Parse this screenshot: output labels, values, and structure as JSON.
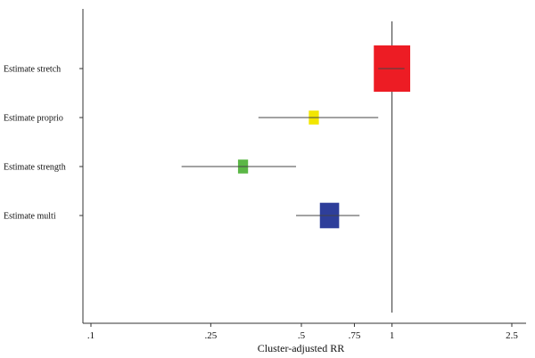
{
  "chart_data": {
    "type": "forest",
    "title": "",
    "xlabel": "Cluster-adjusted RR",
    "ylabel": "",
    "xscale": "log",
    "xlim": [
      0.1,
      2.5
    ],
    "xticks": [
      {
        "value": 0.1,
        "label": ".1"
      },
      {
        "value": 0.25,
        "label": ".25"
      },
      {
        "value": 0.5,
        "label": ".5"
      },
      {
        "value": 0.75,
        "label": ".75"
      },
      {
        "value": 1,
        "label": "1"
      },
      {
        "value": 2.5,
        "label": "2.5"
      }
    ],
    "reference_line": 1,
    "grid": false,
    "series": [
      {
        "label": "Estimate stretch",
        "estimate": 1.0,
        "ci": [
          0.9,
          1.1
        ],
        "color": "#ed1c24",
        "box_width_ratio": 0.17,
        "box_height_ratio": 1.0
      },
      {
        "label": "Estimate proprio",
        "estimate": 0.55,
        "ci": [
          0.36,
          0.9
        ],
        "color": "#f2e600",
        "box_width_ratio": 0.047,
        "box_height_ratio": 0.3
      },
      {
        "label": "Estimate strength",
        "estimate": 0.32,
        "ci": [
          0.2,
          0.48
        ],
        "color": "#5bb746",
        "box_width_ratio": 0.047,
        "box_height_ratio": 0.3
      },
      {
        "label": "Estimate multi",
        "estimate": 0.62,
        "ci": [
          0.48,
          0.78
        ],
        "color": "#2e3e9a",
        "box_width_ratio": 0.09,
        "box_height_ratio": 0.55
      }
    ]
  }
}
